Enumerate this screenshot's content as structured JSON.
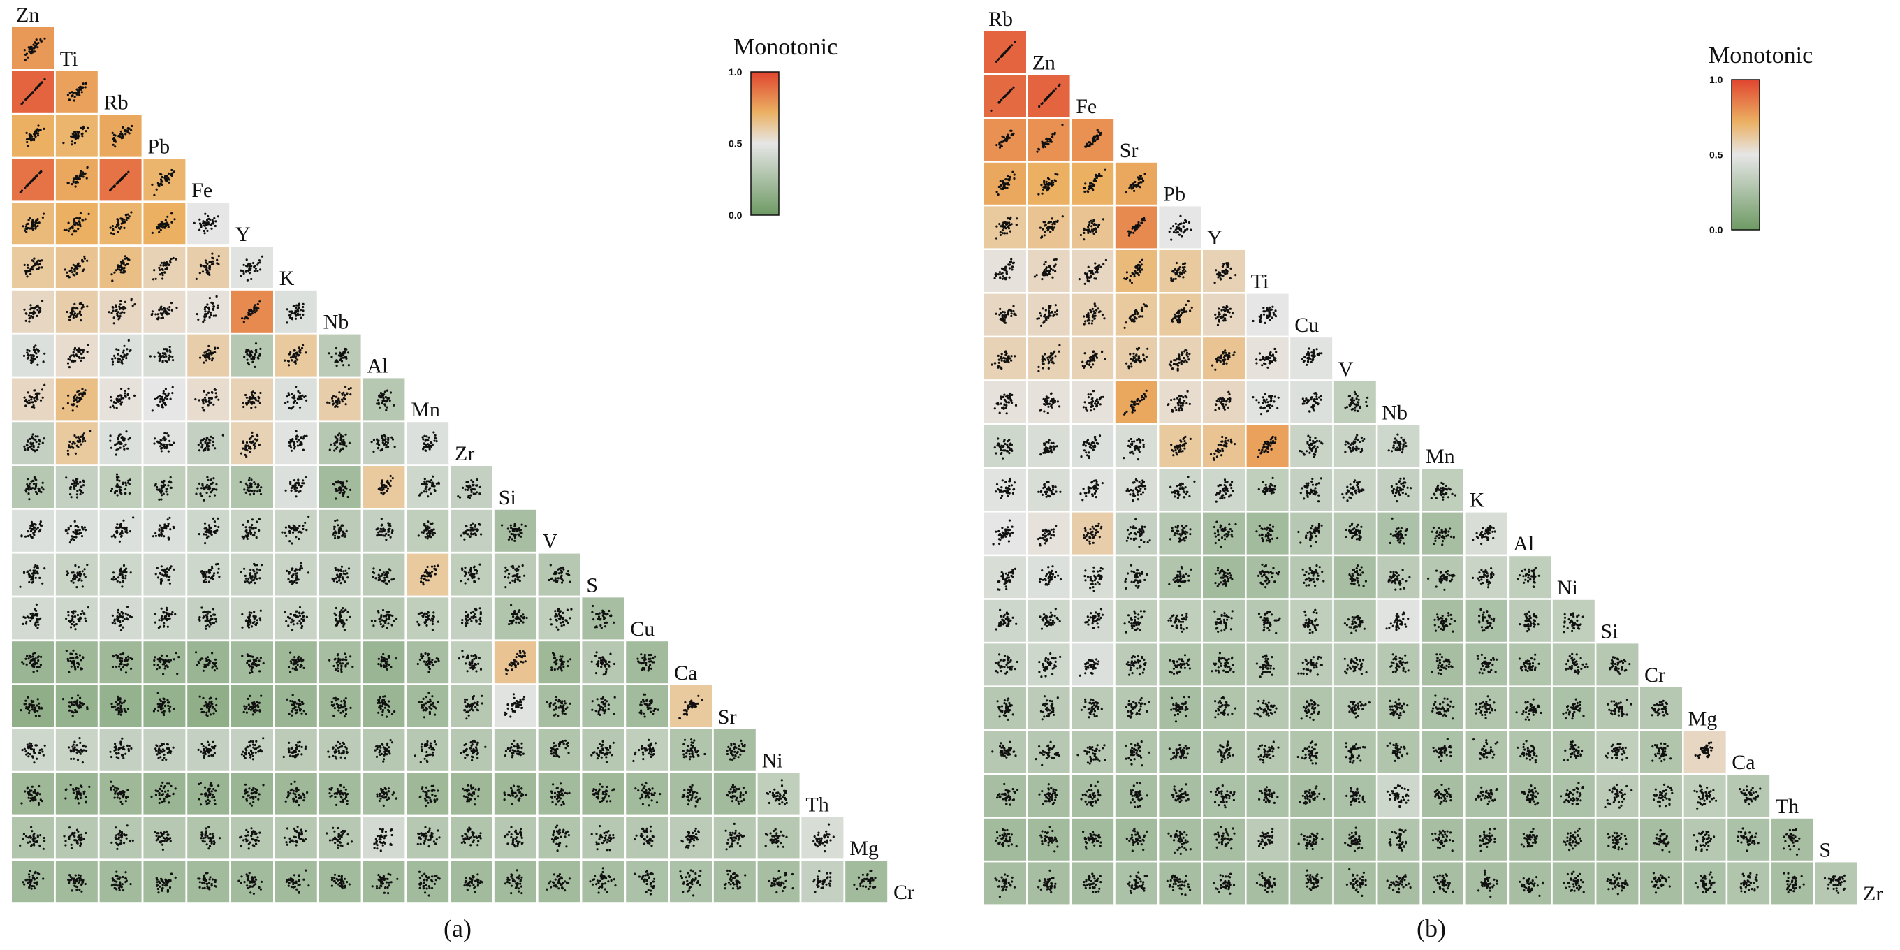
{
  "captions": [
    "(a)",
    "(b)"
  ],
  "chart_data": [
    {
      "type": "heatmap",
      "subtype": "lower-triangular scatterplot matrix",
      "legend_title": "Monotonic",
      "color_scale": {
        "min": 0.0,
        "mid": 0.5,
        "max": 1.0,
        "ticks": [
          "0.0",
          "0.5",
          "1.0"
        ],
        "colors": [
          "#6e9a64",
          "#e6e6e6",
          "#ebb062",
          "#e0452f"
        ]
      },
      "variables": [
        "Zn",
        "Ti",
        "Rb",
        "Pb",
        "Fe",
        "Y",
        "K",
        "Nb",
        "Al",
        "Mn",
        "Zr",
        "Si",
        "V",
        "S",
        "Cu",
        "Ca",
        "Sr",
        "Ni",
        "Th",
        "Mg",
        "Cr"
      ],
      "caption": "(a)",
      "values": [
        [
          0.78
        ],
        [
          0.92,
          0.76
        ],
        [
          0.72,
          0.7,
          0.74
        ],
        [
          0.88,
          0.74,
          0.88,
          0.7
        ],
        [
          0.68,
          0.72,
          0.7,
          0.72,
          0.5
        ],
        [
          0.62,
          0.64,
          0.66,
          0.58,
          0.6,
          0.48
        ],
        [
          0.56,
          0.6,
          0.56,
          0.54,
          0.52,
          0.82,
          0.46
        ],
        [
          0.46,
          0.54,
          0.46,
          0.44,
          0.6,
          0.3,
          0.62,
          0.32
        ],
        [
          0.56,
          0.66,
          0.52,
          0.5,
          0.54,
          0.58,
          0.46,
          0.6,
          0.3
        ],
        [
          0.36,
          0.62,
          0.46,
          0.48,
          0.36,
          0.58,
          0.48,
          0.3,
          0.36,
          0.46
        ],
        [
          0.3,
          0.36,
          0.34,
          0.34,
          0.32,
          0.28,
          0.46,
          0.22,
          0.62,
          0.4,
          0.36
        ],
        [
          0.46,
          0.46,
          0.46,
          0.46,
          0.4,
          0.38,
          0.38,
          0.32,
          0.36,
          0.34,
          0.36,
          0.24
        ],
        [
          0.42,
          0.38,
          0.4,
          0.42,
          0.4,
          0.38,
          0.38,
          0.36,
          0.32,
          0.62,
          0.34,
          0.32,
          0.3
        ],
        [
          0.42,
          0.4,
          0.42,
          0.4,
          0.36,
          0.38,
          0.38,
          0.34,
          0.3,
          0.34,
          0.36,
          0.28,
          0.34,
          0.24
        ],
        [
          0.18,
          0.2,
          0.2,
          0.2,
          0.18,
          0.22,
          0.2,
          0.24,
          0.18,
          0.24,
          0.34,
          0.64,
          0.2,
          0.3,
          0.22
        ],
        [
          0.14,
          0.16,
          0.16,
          0.16,
          0.14,
          0.16,
          0.18,
          0.2,
          0.18,
          0.22,
          0.3,
          0.48,
          0.24,
          0.26,
          0.22,
          0.62
        ],
        [
          0.4,
          0.38,
          0.36,
          0.36,
          0.36,
          0.36,
          0.32,
          0.32,
          0.3,
          0.3,
          0.3,
          0.3,
          0.28,
          0.3,
          0.34,
          0.28,
          0.24
        ],
        [
          0.2,
          0.18,
          0.2,
          0.18,
          0.18,
          0.18,
          0.2,
          0.22,
          0.24,
          0.2,
          0.2,
          0.2,
          0.22,
          0.2,
          0.22,
          0.24,
          0.22,
          0.34
        ],
        [
          0.28,
          0.3,
          0.3,
          0.3,
          0.28,
          0.3,
          0.3,
          0.3,
          0.42,
          0.3,
          0.28,
          0.3,
          0.28,
          0.3,
          0.3,
          0.32,
          0.3,
          0.3,
          0.44
        ],
        [
          0.22,
          0.22,
          0.22,
          0.22,
          0.22,
          0.22,
          0.22,
          0.22,
          0.22,
          0.22,
          0.22,
          0.22,
          0.22,
          0.24,
          0.26,
          0.26,
          0.24,
          0.24,
          0.36,
          0.22
        ]
      ]
    },
    {
      "type": "heatmap",
      "subtype": "lower-triangular scatterplot matrix",
      "legend_title": "Monotonic",
      "color_scale": {
        "min": 0.0,
        "mid": 0.5,
        "max": 1.0,
        "ticks": [
          "0.0",
          "0.5",
          "1.0"
        ],
        "colors": [
          "#6e9a64",
          "#e6e6e6",
          "#ebb062",
          "#e0452f"
        ]
      },
      "variables": [
        "Rb",
        "Zn",
        "Fe",
        "Sr",
        "Pb",
        "Y",
        "Ti",
        "Cu",
        "V",
        "Nb",
        "Mn",
        "K",
        "Al",
        "Ni",
        "Si",
        "Cr",
        "Mg",
        "Ca",
        "Th",
        "S",
        "Zr"
      ],
      "caption": "(b)",
      "values": [
        [
          0.92
        ],
        [
          0.9,
          0.92
        ],
        [
          0.8,
          0.8,
          0.8
        ],
        [
          0.74,
          0.72,
          0.72,
          0.74
        ],
        [
          0.62,
          0.64,
          0.64,
          0.82,
          0.5
        ],
        [
          0.52,
          0.56,
          0.56,
          0.68,
          0.62,
          0.58
        ],
        [
          0.56,
          0.56,
          0.58,
          0.62,
          0.62,
          0.56,
          0.5
        ],
        [
          0.58,
          0.58,
          0.58,
          0.6,
          0.58,
          0.64,
          0.52,
          0.48
        ],
        [
          0.52,
          0.52,
          0.52,
          0.74,
          0.54,
          0.56,
          0.48,
          0.46,
          0.34
        ],
        [
          0.4,
          0.44,
          0.46,
          0.44,
          0.62,
          0.64,
          0.76,
          0.38,
          0.38,
          0.4
        ],
        [
          0.48,
          0.44,
          0.48,
          0.44,
          0.4,
          0.4,
          0.34,
          0.36,
          0.38,
          0.36,
          0.34
        ],
        [
          0.5,
          0.52,
          0.6,
          0.36,
          0.3,
          0.24,
          0.22,
          0.3,
          0.3,
          0.26,
          0.24,
          0.44
        ],
        [
          0.44,
          0.46,
          0.44,
          0.36,
          0.28,
          0.22,
          0.24,
          0.3,
          0.24,
          0.32,
          0.3,
          0.38,
          0.34
        ],
        [
          0.4,
          0.4,
          0.42,
          0.34,
          0.34,
          0.3,
          0.3,
          0.34,
          0.3,
          0.48,
          0.24,
          0.26,
          0.32,
          0.34
        ],
        [
          0.36,
          0.4,
          0.46,
          0.32,
          0.28,
          0.28,
          0.3,
          0.32,
          0.32,
          0.3,
          0.24,
          0.26,
          0.28,
          0.3,
          0.3
        ],
        [
          0.3,
          0.32,
          0.32,
          0.3,
          0.24,
          0.28,
          0.3,
          0.28,
          0.3,
          0.28,
          0.26,
          0.28,
          0.28,
          0.26,
          0.3,
          0.3
        ],
        [
          0.3,
          0.3,
          0.3,
          0.28,
          0.26,
          0.28,
          0.3,
          0.28,
          0.28,
          0.28,
          0.26,
          0.28,
          0.28,
          0.28,
          0.34,
          0.28,
          0.56
        ],
        [
          0.24,
          0.24,
          0.24,
          0.24,
          0.24,
          0.26,
          0.26,
          0.24,
          0.26,
          0.4,
          0.24,
          0.26,
          0.24,
          0.26,
          0.32,
          0.3,
          0.34,
          0.3
        ],
        [
          0.22,
          0.22,
          0.22,
          0.22,
          0.24,
          0.24,
          0.32,
          0.24,
          0.24,
          0.28,
          0.24,
          0.24,
          0.24,
          0.24,
          0.24,
          0.24,
          0.3,
          0.26,
          0.24
        ],
        [
          0.24,
          0.24,
          0.24,
          0.26,
          0.24,
          0.26,
          0.24,
          0.24,
          0.24,
          0.24,
          0.24,
          0.24,
          0.24,
          0.24,
          0.24,
          0.24,
          0.26,
          0.28,
          0.24,
          0.3
        ]
      ]
    }
  ]
}
